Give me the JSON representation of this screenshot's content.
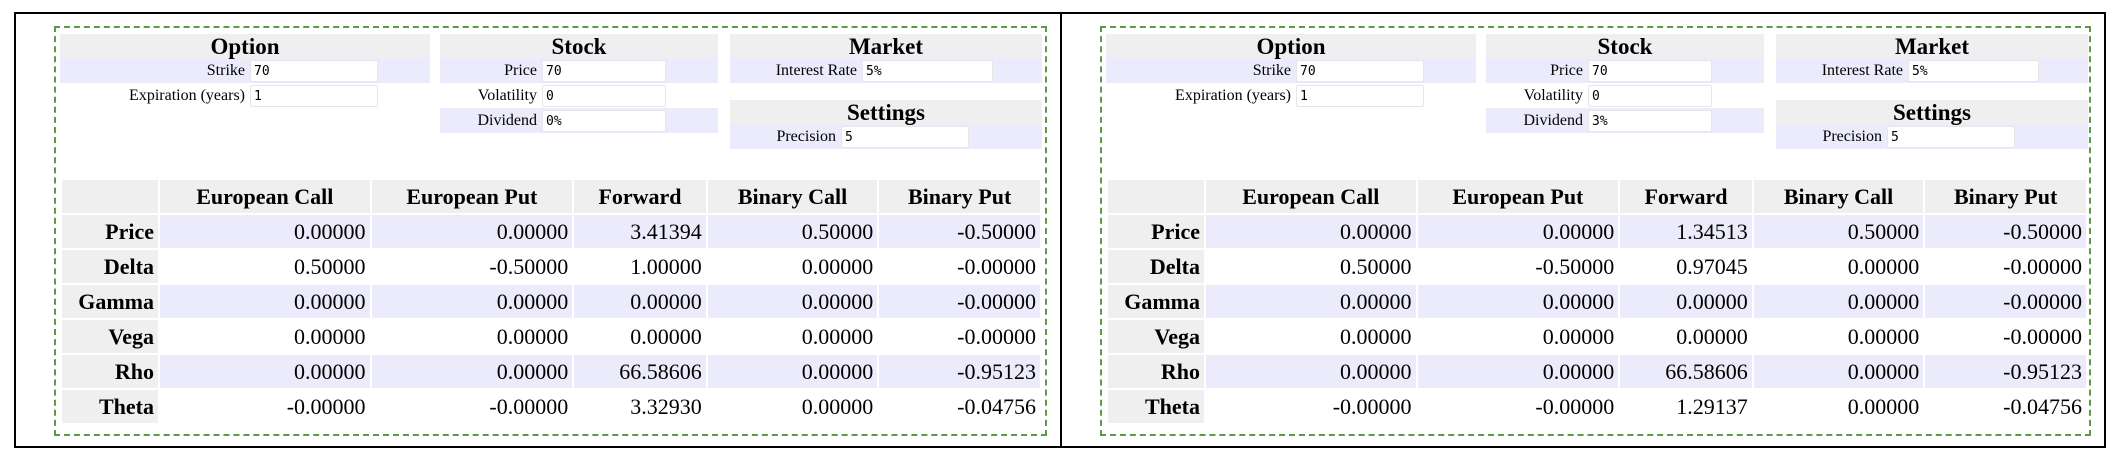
{
  "colors": {
    "row_shade": "#ebebfb",
    "header_bg": "#efefef",
    "inner_border": "#5a9a4a"
  },
  "panels": [
    {
      "option": {
        "title": "Option",
        "strike_label": "Strike",
        "strike": "70",
        "expiration_label": "Expiration (years)",
        "expiration": "1"
      },
      "stock": {
        "title": "Stock",
        "price_label": "Price",
        "price": "70",
        "volatility_label": "Volatility",
        "volatility": "0",
        "dividend_label": "Dividend",
        "dividend": "0%"
      },
      "market": {
        "title": "Market",
        "rate_label": "Interest Rate",
        "rate": "5%"
      },
      "settings": {
        "title": "Settings",
        "precision_label": "Precision",
        "precision": "5"
      },
      "table": {
        "columns": [
          "European Call",
          "European Put",
          "Forward",
          "Binary Call",
          "Binary Put"
        ],
        "rows": [
          {
            "label": "Price",
            "values": [
              "0.00000",
              "0.00000",
              "3.41394",
              "0.50000",
              "-0.50000"
            ]
          },
          {
            "label": "Delta",
            "values": [
              "0.50000",
              "-0.50000",
              "1.00000",
              "0.00000",
              "-0.00000"
            ]
          },
          {
            "label": "Gamma",
            "values": [
              "0.00000",
              "0.00000",
              "0.00000",
              "0.00000",
              "-0.00000"
            ]
          },
          {
            "label": "Vega",
            "values": [
              "0.00000",
              "0.00000",
              "0.00000",
              "0.00000",
              "-0.00000"
            ]
          },
          {
            "label": "Rho",
            "values": [
              "0.00000",
              "0.00000",
              "66.58606",
              "0.00000",
              "-0.95123"
            ]
          },
          {
            "label": "Theta",
            "values": [
              "-0.00000",
              "-0.00000",
              "3.32930",
              "0.00000",
              "-0.04756"
            ]
          }
        ]
      }
    },
    {
      "option": {
        "title": "Option",
        "strike_label": "Strike",
        "strike": "70",
        "expiration_label": "Expiration (years)",
        "expiration": "1"
      },
      "stock": {
        "title": "Stock",
        "price_label": "Price",
        "price": "70",
        "volatility_label": "Volatility",
        "volatility": "0",
        "dividend_label": "Dividend",
        "dividend": "3%"
      },
      "market": {
        "title": "Market",
        "rate_label": "Interest Rate",
        "rate": "5%"
      },
      "settings": {
        "title": "Settings",
        "precision_label": "Precision",
        "precision": "5"
      },
      "table": {
        "columns": [
          "European Call",
          "European Put",
          "Forward",
          "Binary Call",
          "Binary Put"
        ],
        "rows": [
          {
            "label": "Price",
            "values": [
              "0.00000",
              "0.00000",
              "1.34513",
              "0.50000",
              "-0.50000"
            ]
          },
          {
            "label": "Delta",
            "values": [
              "0.50000",
              "-0.50000",
              "0.97045",
              "0.00000",
              "-0.00000"
            ]
          },
          {
            "label": "Gamma",
            "values": [
              "0.00000",
              "0.00000",
              "0.00000",
              "0.00000",
              "-0.00000"
            ]
          },
          {
            "label": "Vega",
            "values": [
              "0.00000",
              "0.00000",
              "0.00000",
              "0.00000",
              "-0.00000"
            ]
          },
          {
            "label": "Rho",
            "values": [
              "0.00000",
              "0.00000",
              "66.58606",
              "0.00000",
              "-0.95123"
            ]
          },
          {
            "label": "Theta",
            "values": [
              "-0.00000",
              "-0.00000",
              "1.29137",
              "0.00000",
              "-0.04756"
            ]
          }
        ]
      }
    }
  ]
}
